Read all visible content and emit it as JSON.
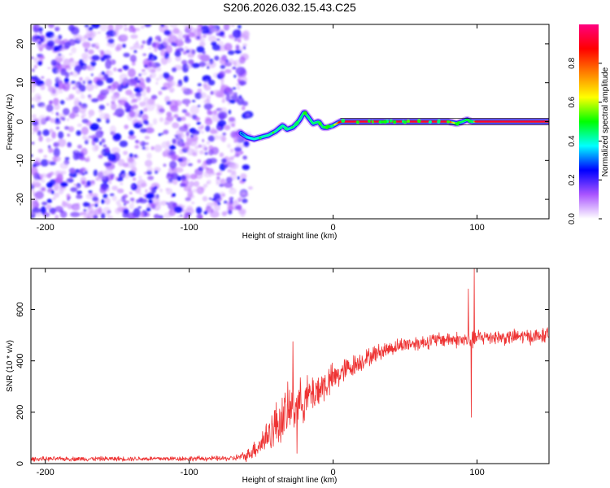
{
  "title": "S206.2026.032.15.43.C25",
  "colorbar": {
    "label": "Normalized spectral amplitude",
    "range": [
      0,
      1
    ],
    "ticks": [
      0.0,
      0.2,
      0.4,
      0.6,
      0.8
    ],
    "tick_labels": [
      "0.0",
      "0.2",
      "0.4",
      "0.6",
      "0.8"
    ],
    "colors": [
      "#ffffff",
      "#aa55ff",
      "#0000ff",
      "#00ffff",
      "#00ff00",
      "#ffff00",
      "#ff8000",
      "#ff0000",
      "#ff0080"
    ]
  },
  "chart_data": [
    {
      "type": "heatmap",
      "xlabel": "Height of straight line (km)",
      "ylabel": "Frequency (Hz)",
      "xlim": [
        -210,
        150
      ],
      "ylim": [
        -25,
        25
      ],
      "xticks": [
        -200,
        -100,
        0,
        100
      ],
      "xtick_labels": [
        "-200",
        "-100",
        "0",
        "100"
      ],
      "yticks": [
        -20,
        -10,
        0,
        10,
        20
      ],
      "ytick_labels": [
        "-20",
        "-10",
        "0",
        "10",
        "20"
      ],
      "noise_region_x": [
        -210,
        -60
      ],
      "noise_amplitude_range": [
        0.05,
        0.25
      ],
      "carrier_trace": {
        "x": [
          -64,
          -60,
          -55,
          -50,
          -45,
          -40,
          -35,
          -32,
          -28,
          -24,
          -20,
          -17,
          -14,
          -10,
          -7,
          -4,
          0,
          5,
          10,
          50,
          80,
          86,
          90,
          93,
          96,
          100,
          150
        ],
        "freq": [
          -3,
          -4,
          -4.5,
          -4,
          -3.5,
          -2.5,
          -1,
          -2,
          -1.5,
          0,
          2.5,
          1,
          -0.5,
          0,
          -1.5,
          -1.5,
          -1,
          0,
          0,
          0,
          0,
          -0.5,
          0,
          0.5,
          0,
          0,
          0
        ],
        "amplitude": [
          0.25,
          0.35,
          0.4,
          0.4,
          0.42,
          0.42,
          0.42,
          0.42,
          0.43,
          0.45,
          0.45,
          0.45,
          0.45,
          0.46,
          0.45,
          0.45,
          0.5,
          0.9,
          0.92,
          0.92,
          0.92,
          0.5,
          0.45,
          0.5,
          0.5,
          0.92,
          0.92
        ]
      }
    },
    {
      "type": "line",
      "xlabel": "Height of straight line (km)",
      "ylabel": "SNR (10 * v/v)",
      "xlim": [
        -210,
        150
      ],
      "ylim": [
        0,
        760
      ],
      "xticks": [
        -200,
        -100,
        0,
        100
      ],
      "xtick_labels": [
        "-200",
        "-100",
        "0",
        "100"
      ],
      "yticks": [
        0,
        200,
        400,
        600
      ],
      "ytick_labels": [
        "0",
        "200",
        "400",
        "600"
      ],
      "series": [
        {
          "name": "SNR",
          "color": "#ee3333",
          "envelope": {
            "x": [
              -210,
              -70,
              -60,
              -50,
              -40,
              -30,
              -20,
              -10,
              0,
              10,
              20,
              30,
              40,
              50,
              60,
              70,
              80,
              90,
              95,
              98,
              100,
              110,
              120,
              130,
              140,
              150
            ],
            "mean": [
              18,
              20,
              30,
              80,
              150,
              210,
              250,
              290,
              330,
              370,
              400,
              430,
              450,
              465,
              470,
              480,
              485,
              480,
              480,
              480,
              490,
              495,
              490,
              495,
              495,
              500
            ],
            "spread": [
              10,
              12,
              25,
              60,
              110,
              120,
              100,
              90,
              70,
              55,
              45,
              40,
              35,
              35,
              35,
              35,
              35,
              40,
              40,
              40,
              40,
              35,
              35,
              35,
              35,
              35
            ]
          },
          "spikes": [
            {
              "x": -28,
              "y": 475
            },
            {
              "x": -25,
              "y": 40
            },
            {
              "x": 96,
              "y": 180
            },
            {
              "x": 98,
              "y": 760
            },
            {
              "x": 94,
              "y": 680
            }
          ]
        }
      ]
    }
  ]
}
